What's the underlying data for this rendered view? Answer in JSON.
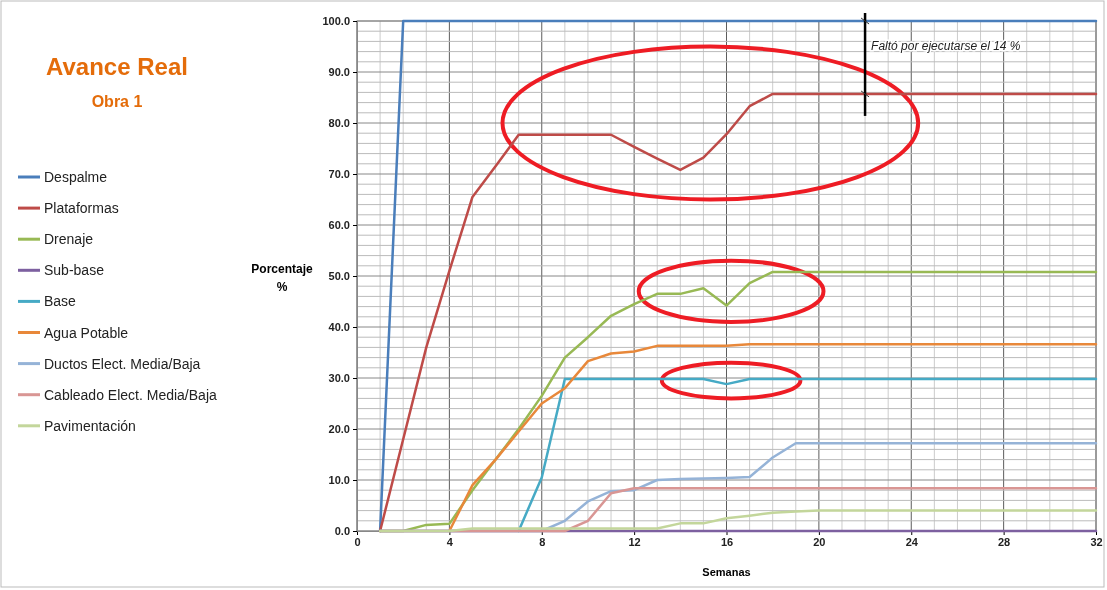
{
  "chart_data": {
    "type": "line",
    "title": "Avance Real",
    "subtitle": "Obra 1",
    "xlabel": "Semanas",
    "ylabel": "Porcentaje %",
    "x": [
      1,
      2,
      3,
      4,
      5,
      6,
      7,
      8,
      9,
      10,
      11,
      12,
      13,
      14,
      15,
      16,
      17,
      18,
      19,
      20,
      21,
      22,
      23,
      24,
      25,
      26,
      27,
      28,
      29,
      30,
      31,
      32
    ],
    "series": [
      {
        "name": "Despalme",
        "color": "#4a7ebb",
        "values": [
          0,
          100,
          100,
          100,
          100,
          100,
          100,
          100,
          100,
          100,
          100,
          100,
          100,
          100,
          100,
          100,
          100,
          100,
          100,
          100,
          100,
          100,
          100,
          100,
          100,
          100,
          100,
          100,
          100,
          100,
          100,
          100
        ]
      },
      {
        "name": "Plataformas",
        "color": "#be4b48",
        "values": [
          0,
          18,
          36,
          51,
          65.5,
          71.5,
          77.7,
          77.7,
          77.7,
          77.7,
          77.7,
          75.3,
          73,
          70.8,
          73.2,
          77.8,
          83.3,
          85.7,
          85.7,
          85.7,
          85.7,
          85.7,
          85.7,
          85.7,
          85.7,
          85.7,
          85.7,
          85.7,
          85.7,
          85.7,
          85.7,
          85.7
        ]
      },
      {
        "name": "Drenaje",
        "color": "#98b954",
        "values": [
          0,
          0,
          1.2,
          1.4,
          8,
          14,
          20,
          26.5,
          34,
          38,
          42.2,
          44.5,
          46.5,
          46.5,
          47.6,
          44.2,
          48.6,
          50.8,
          50.8,
          50.8,
          50.8,
          50.8,
          50.8,
          50.8,
          50.8,
          50.8,
          50.8,
          50.8,
          50.8,
          50.8,
          50.8,
          50.8
        ]
      },
      {
        "name": "Sub-base",
        "color": "#7d60a0",
        "values": [
          0,
          0,
          0,
          0,
          0,
          0,
          0,
          0,
          0,
          0,
          0,
          0,
          0,
          0,
          0,
          0,
          0,
          0,
          0,
          0,
          0,
          0,
          0,
          0,
          0,
          0,
          0,
          0,
          0,
          0,
          0,
          0
        ]
      },
      {
        "name": "Base",
        "color": "#46aac5",
        "values": [
          null,
          null,
          null,
          null,
          null,
          null,
          0,
          10.5,
          29.8,
          29.8,
          29.8,
          29.8,
          29.8,
          29.8,
          29.8,
          28.8,
          29.8,
          29.8,
          29.8,
          29.8,
          29.8,
          29.8,
          29.8,
          29.8,
          29.8,
          29.8,
          29.8,
          29.8,
          29.8,
          29.8,
          29.8,
          29.8
        ]
      },
      {
        "name": "Agua Potable",
        "color": "#e8883a",
        "values": [
          null,
          null,
          null,
          0,
          9,
          14,
          19.5,
          25,
          28,
          33.3,
          34.8,
          35.2,
          36.3,
          36.3,
          36.3,
          36.3,
          36.6,
          36.6,
          36.6,
          36.6,
          36.6,
          36.6,
          36.6,
          36.6,
          36.6,
          36.6,
          36.6,
          36.6,
          36.6,
          36.6,
          36.6,
          36.6
        ]
      },
      {
        "name": "Ductos Elect. Media/Baja",
        "color": "#95b3d7",
        "values": [
          0,
          0,
          0,
          0,
          0,
          0,
          0,
          0,
          2,
          5.8,
          7.8,
          8,
          10,
          10.2,
          10.3,
          10.4,
          10.6,
          14.4,
          17.2,
          17.2,
          17.2,
          17.2,
          17.2,
          17.2,
          17.2,
          17.2,
          17.2,
          17.2,
          17.2,
          17.2,
          17.2,
          17.2
        ]
      },
      {
        "name": "Cableado Elect. Media/Baja",
        "color": "#d99694",
        "values": [
          0,
          0,
          0,
          0,
          0,
          0,
          0,
          0,
          0,
          2,
          7.4,
          8.4,
          8.4,
          8.4,
          8.4,
          8.4,
          8.4,
          8.4,
          8.4,
          8.4,
          8.4,
          8.4,
          8.4,
          8.4,
          8.4,
          8.4,
          8.4,
          8.4,
          8.4,
          8.4,
          8.4,
          8.4
        ]
      },
      {
        "name": "Pavimentación",
        "color": "#c3d69b",
        "values": [
          0,
          0,
          0,
          0,
          0.5,
          0.5,
          0.5,
          0.5,
          0.5,
          0.5,
          0.5,
          0.5,
          0.5,
          1.5,
          1.5,
          2.5,
          3,
          3.6,
          3.8,
          4,
          4,
          4,
          4,
          4,
          4,
          4,
          4,
          4,
          4,
          4,
          4,
          4
        ]
      }
    ],
    "xlim": [
      0,
      32
    ],
    "xticks": [
      0,
      4,
      8,
      12,
      16,
      20,
      24,
      28,
      32
    ],
    "ylim": [
      0,
      100
    ],
    "yticks": [
      {
        "value": 0,
        "label": "0.0"
      },
      {
        "value": 10,
        "label": "10.0"
      },
      {
        "value": 20,
        "label": "20.0"
      },
      {
        "value": 30,
        "label": "30.0"
      },
      {
        "value": 40,
        "label": "40.0"
      },
      {
        "value": 50,
        "label": "50.0"
      },
      {
        "value": 60,
        "label": "60.0"
      },
      {
        "value": 70,
        "label": "70.0"
      },
      {
        "value": 80,
        "label": "80.0"
      },
      {
        "value": 90,
        "label": "90.0"
      },
      {
        "value": 100,
        "label": "100.0"
      }
    ],
    "annotations": [
      "Faltó por ejecutarse el 14 %"
    ],
    "grid": true,
    "legend": "left",
    "marker": "none",
    "line_style": "solid"
  }
}
